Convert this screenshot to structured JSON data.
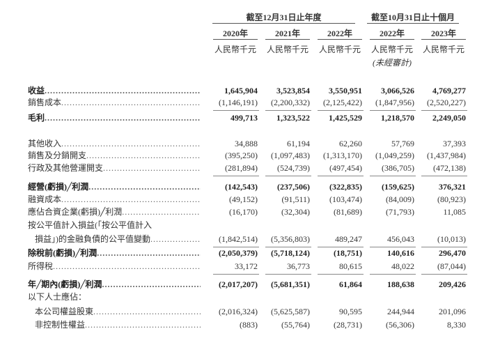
{
  "header": {
    "group_year": "截至12月31日止年度",
    "group_ten_months": "截至10月31日止十個月",
    "columns": [
      {
        "year": "2020年",
        "unit": "人民幣千元",
        "note": ""
      },
      {
        "year": "2021年",
        "unit": "人民幣千元",
        "note": ""
      },
      {
        "year": "2022年",
        "unit": "人民幣千元",
        "note": ""
      },
      {
        "year": "2022年",
        "unit": "人民幣千元",
        "note": "(未經審計)"
      },
      {
        "year": "2023年",
        "unit": "人民幣千元",
        "note": ""
      }
    ]
  },
  "rows": [
    {
      "label": "收益",
      "bold": true,
      "values": [
        "1,645,904",
        "3,523,854",
        "3,550,951",
        "3,066,526",
        "4,769,277"
      ]
    },
    {
      "label": "銷售成本",
      "values": [
        "(1,146,191)",
        "(2,200,332)",
        "(2,125,422)",
        "(1,847,956)",
        "(2,520,227)"
      ],
      "rule_after": true
    },
    {
      "label": "毛利",
      "bold": true,
      "values": [
        "499,713",
        "1,323,522",
        "1,425,529",
        "1,218,570",
        "2,249,050"
      ]
    },
    {
      "label": "其他收入",
      "values": [
        "34,888",
        "61,194",
        "62,260",
        "57,769",
        "37,393"
      ]
    },
    {
      "label": "銷售及分銷開支",
      "values": [
        "(395,250)",
        "(1,097,483)",
        "(1,313,170)",
        "(1,049,259)",
        "(1,437,984)"
      ]
    },
    {
      "label": "行政及其他營運開支",
      "values": [
        "(281,894)",
        "(524,739)",
        "(497,454)",
        "(386,705)",
        "(472,138)"
      ],
      "rule_after": true
    },
    {
      "label": "經營(虧損)╱利潤",
      "bold": true,
      "values": [
        "(142,543)",
        "(237,506)",
        "(322,835)",
        "(159,625)",
        "376,321"
      ]
    },
    {
      "label": "融資成本",
      "values": [
        "(49,152)",
        "(91,511)",
        "(103,474)",
        "(84,009)",
        "(80,923)"
      ]
    },
    {
      "label": "應佔合資企業(虧損)╱利潤",
      "values": [
        "(16,170)",
        "(32,304)",
        "(81,689)",
        "(71,793)",
        "11,085"
      ]
    },
    {
      "label": "按公平值計入損益(「按公平值計入",
      "values": []
    },
    {
      "label": "損益」)的金融負債的公平值變動",
      "indent": true,
      "values": [
        "(1,842,514)",
        "(5,356,803)",
        "489,247",
        "456,043",
        "(10,013)"
      ],
      "rule_after": true
    },
    {
      "label": "除稅前(虧損)╱利潤",
      "bold": true,
      "values": [
        "(2,050,379)",
        "(5,718,124)",
        "(18,751)",
        "140,616",
        "296,470"
      ]
    },
    {
      "label": "所得稅",
      "values": [
        "33,172",
        "36,773",
        "80,615",
        "48,022",
        "(87,044)"
      ],
      "rule_after": true
    },
    {
      "label": "年╱期內(虧損)╱利潤",
      "bold": true,
      "values": [
        "(2,017,207)",
        "(5,681,351)",
        "61,864",
        "188,638",
        "209,426"
      ]
    },
    {
      "label": "以下人士應佔：",
      "values": []
    },
    {
      "label": "本公司權益股東",
      "indent": true,
      "values": [
        "(2,016,324)",
        "(5,625,587)",
        "90,595",
        "244,944",
        "201,096"
      ]
    },
    {
      "label": "非控制性權益",
      "indent": true,
      "values": [
        "(883)",
        "(55,764)",
        "(28,731)",
        "(56,306)",
        "8,330"
      ]
    }
  ]
}
